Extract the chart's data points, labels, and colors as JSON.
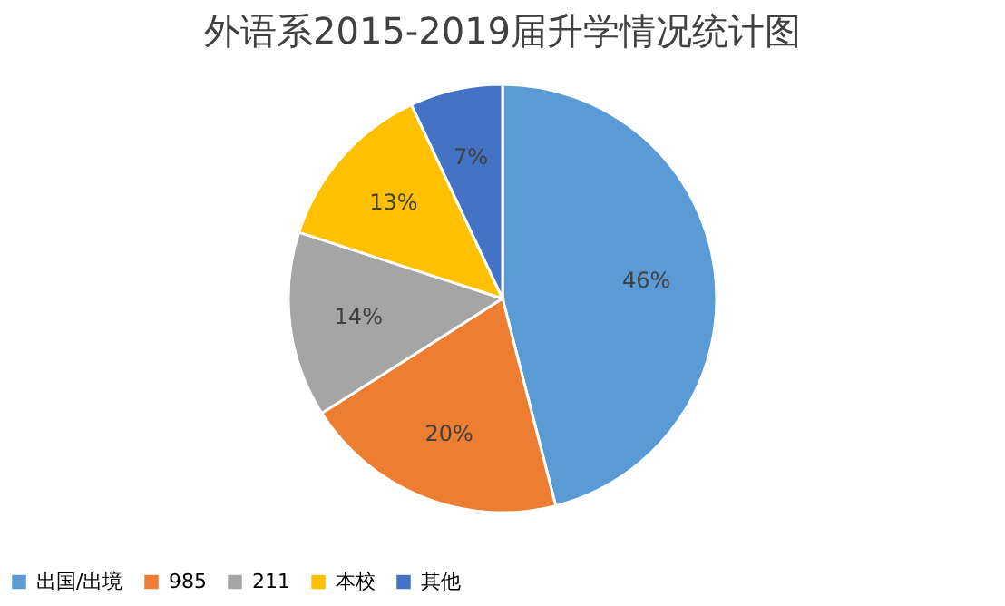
{
  "chart_data": {
    "type": "pie",
    "title": "外语系2015-2019届升学情况统计图",
    "categories": [
      "出国/出境",
      "985",
      "211",
      "本校",
      "其他"
    ],
    "values": [
      46,
      20,
      14,
      13,
      7
    ],
    "colors": [
      "#5b9bd5",
      "#ed7d31",
      "#a5a5a5",
      "#ffc000",
      "#4472c4"
    ],
    "value_labels": [
      "46%",
      "20%",
      "14%",
      "13%",
      "7%"
    ],
    "legend": "bottom"
  }
}
